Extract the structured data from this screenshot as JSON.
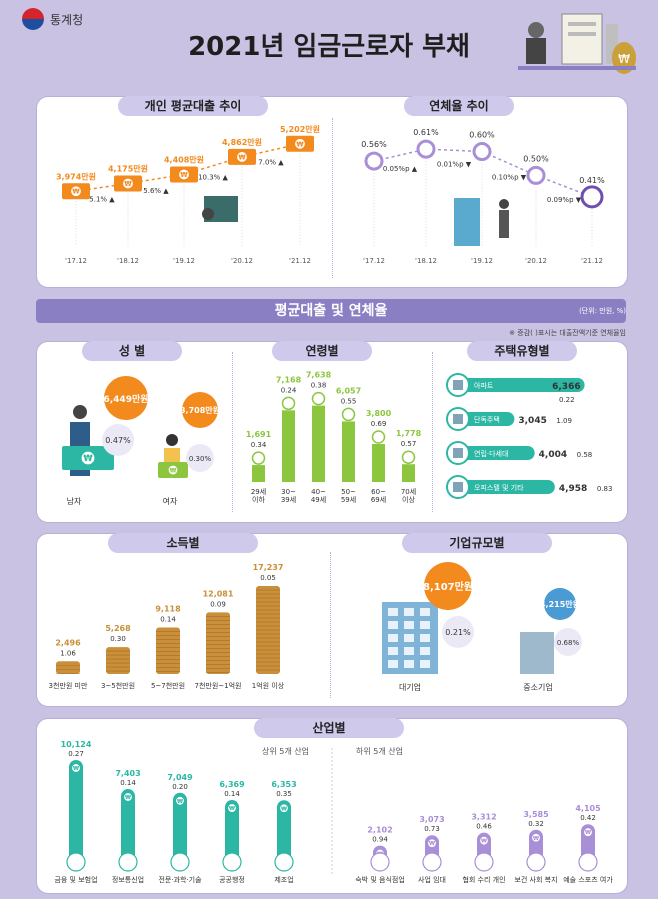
{
  "header": {
    "logo_text": "통계청",
    "title": "2021년 임금근로자 부채"
  },
  "banner": {
    "title": "평균대출 및 연체율",
    "unit": "(단위: 만원, %)",
    "note": "※ 증감(   )표시는 대출잔액기준 연체율임"
  },
  "legend": {
    "top5": "상위 5개 산업",
    "bottom5": "하위 5개 산업"
  },
  "colors": {
    "orange": "#f28a1e",
    "purple": "#a98fd6",
    "green": "#8cc63f",
    "teal": "#2bb7a3",
    "gold": "#c98f3a",
    "lavender": "#cfc9ec"
  },
  "chart_data": [
    {
      "id": "loan-trend",
      "type": "line",
      "title": "개인 평균대출 추이",
      "categories": [
        "'17.12",
        "'18.12",
        "'19.12",
        "'20.12",
        "'21.12"
      ],
      "values": [
        3974,
        4175,
        4408,
        4862,
        5202
      ],
      "value_labels": [
        "3,974만원",
        "4,175만원",
        "4,408만원",
        "4,862만원",
        "5,202만원"
      ],
      "changes": [
        "5.1%",
        "5.6%",
        "10.3%",
        "7.0%"
      ]
    },
    {
      "id": "delinquency-trend",
      "type": "line",
      "title": "연체율 추이",
      "categories": [
        "'17.12",
        "'18.12",
        "'19.12",
        "'20.12",
        "'21.12"
      ],
      "values": [
        0.56,
        0.61,
        0.6,
        0.5,
        0.41
      ],
      "value_labels": [
        "0.56%",
        "0.61%",
        "0.60%",
        "0.50%",
        "0.41%"
      ],
      "changes": [
        "0.05%p",
        "0.01%p",
        "0.10%p",
        "0.09%p"
      ]
    },
    {
      "id": "gender",
      "type": "bar",
      "title": "성 별",
      "categories": [
        "남자",
        "여자"
      ],
      "loan_labels": [
        "6,449만원",
        "3,708만원"
      ],
      "values": [
        6449,
        3708
      ],
      "rates": [
        "0.47%",
        "0.30%"
      ]
    },
    {
      "id": "age",
      "type": "bar",
      "title": "연령별",
      "categories": [
        "29세\n이하",
        "30~\n39세",
        "40~\n49세",
        "50~\n59세",
        "60~\n69세",
        "70세\n이상"
      ],
      "values": [
        1691,
        7168,
        7638,
        6057,
        3800,
        1778
      ],
      "value_labels": [
        "1,691",
        "7,168",
        "7,638",
        "6,057",
        "3,800",
        "1,778"
      ],
      "rates": [
        "0.34",
        "0.24",
        "0.38",
        "0.55",
        "0.69",
        "0.57"
      ]
    },
    {
      "id": "housing",
      "type": "bar",
      "title": "주택유형별",
      "categories": [
        "아파트",
        "단독주택",
        "연립·다세대",
        "오피스텔 및 기타"
      ],
      "values": [
        6366,
        3045,
        4004,
        4958
      ],
      "value_labels": [
        "6,366",
        "3,045",
        "4,004",
        "4,958"
      ],
      "rates": [
        "0.22",
        "1.09",
        "0.58",
        "0.83"
      ]
    },
    {
      "id": "income",
      "type": "bar",
      "title": "소득별",
      "categories": [
        "3천만원 미만",
        "3~5천만원",
        "5~7천만원",
        "7천만원~1억원",
        "1억원 이상"
      ],
      "values": [
        2496,
        5268,
        9118,
        12081,
        17237
      ],
      "value_labels": [
        "2,496",
        "5,268",
        "9,118",
        "12,081",
        "17,237"
      ],
      "rates": [
        "1.06",
        "0.30",
        "0.14",
        "0.09",
        "0.05"
      ]
    },
    {
      "id": "company",
      "type": "bar",
      "title": "기업규모별",
      "categories": [
        "대기업",
        "중소기업"
      ],
      "values": [
        8107,
        4215
      ],
      "loan_labels": [
        "8,107만원",
        "4,215만원"
      ],
      "rates": [
        "0.21%",
        "0.68%"
      ]
    },
    {
      "id": "industry",
      "type": "bar",
      "title": "산업별",
      "categories": [
        "금융 및 보험업",
        "정보통신업",
        "전문·과학·기술",
        "공공행정",
        "제조업",
        "숙박 및 음식점업",
        "사업 임대",
        "협회 수리 개인",
        "보건 사회 복지",
        "예술 스포츠 여가"
      ],
      "values": [
        10124,
        7403,
        7049,
        6369,
        6353,
        2102,
        3073,
        3312,
        3585,
        4105
      ],
      "value_labels": [
        "10,124",
        "7,403",
        "7,049",
        "6,369",
        "6,353",
        "2,102",
        "3,073",
        "3,312",
        "3,585",
        "4,105"
      ],
      "rates": [
        "0.27",
        "0.14",
        "0.20",
        "0.14",
        "0.35",
        "0.94",
        "0.73",
        "0.46",
        "0.32",
        "0.42"
      ],
      "group": [
        "top",
        "top",
        "top",
        "top",
        "top",
        "bottom",
        "bottom",
        "bottom",
        "bottom",
        "bottom"
      ]
    }
  ]
}
